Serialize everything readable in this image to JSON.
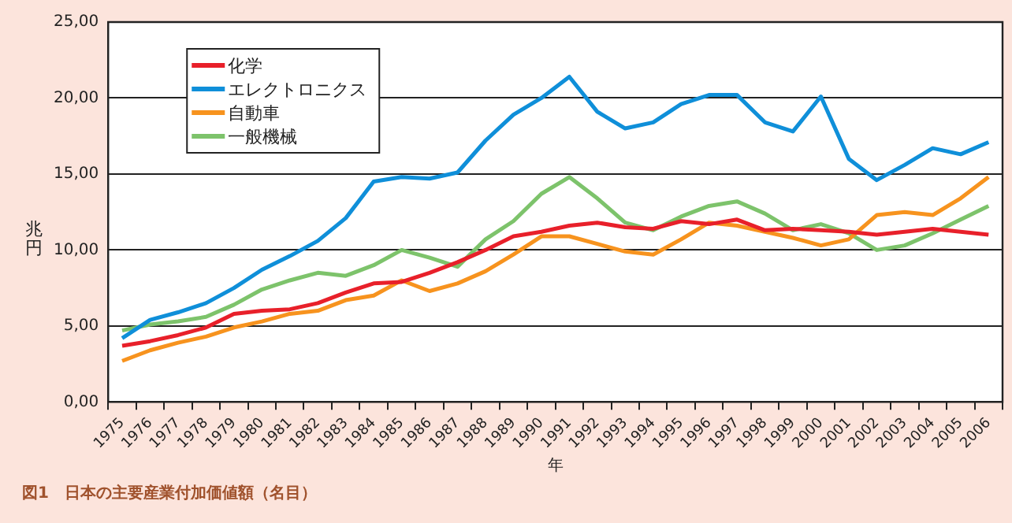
{
  "chart_data": {
    "type": "line",
    "categories": [
      "1975",
      "1976",
      "1977",
      "1978",
      "1979",
      "1980",
      "1981",
      "1982",
      "1983",
      "1984",
      "1985",
      "1986",
      "1987",
      "1988",
      "1989",
      "1990",
      "1991",
      "1992",
      "1993",
      "1994",
      "1995",
      "1996",
      "1997",
      "1998",
      "1999",
      "2000",
      "2001",
      "2002",
      "2003",
      "2004",
      "2005",
      "2006"
    ],
    "series": [
      {
        "name": "化学",
        "color": "#e8202a",
        "values": [
          3.7,
          4.0,
          4.4,
          4.9,
          5.8,
          6.0,
          6.1,
          6.5,
          7.2,
          7.8,
          7.9,
          8.5,
          9.2,
          10.0,
          10.9,
          11.2,
          11.6,
          11.8,
          11.5,
          11.4,
          11.9,
          11.7,
          12.0,
          11.3,
          11.4,
          11.3,
          11.2,
          11.0,
          11.2,
          11.4,
          11.2,
          11.0
        ]
      },
      {
        "name": "エレクトロニクス",
        "color": "#0f8fd9",
        "values": [
          4.2,
          5.4,
          5.9,
          6.5,
          7.5,
          8.7,
          9.6,
          10.6,
          12.1,
          14.5,
          14.8,
          14.7,
          15.1,
          17.2,
          18.9,
          20.0,
          21.4,
          19.1,
          18.0,
          18.4,
          19.6,
          20.2,
          20.2,
          18.4,
          17.8,
          20.1,
          16.0,
          14.6,
          15.6,
          16.7,
          16.3,
          17.1
        ]
      },
      {
        "name": "自動車",
        "color": "#f7931e",
        "values": [
          2.7,
          3.4,
          3.9,
          4.3,
          4.9,
          5.3,
          5.8,
          6.0,
          6.7,
          7.0,
          8.0,
          7.3,
          7.8,
          8.6,
          9.7,
          10.9,
          10.9,
          10.4,
          9.9,
          9.7,
          10.7,
          11.8,
          11.6,
          11.2,
          10.8,
          10.3,
          10.7,
          12.3,
          12.5,
          12.3,
          13.4,
          14.8
        ]
      },
      {
        "name": "一般機械",
        "color": "#7dc36b",
        "values": [
          4.7,
          5.1,
          5.3,
          5.6,
          6.4,
          7.4,
          8.0,
          8.5,
          8.3,
          9.0,
          10.0,
          9.5,
          8.9,
          10.7,
          11.9,
          13.7,
          14.8,
          13.4,
          11.8,
          11.3,
          12.2,
          12.9,
          13.2,
          12.4,
          11.3,
          11.7,
          11.1,
          10.0,
          10.3,
          11.1,
          12.0,
          12.9
        ]
      }
    ],
    "xlabel": "年",
    "ylabel": "兆円",
    "ylim": [
      0,
      25
    ],
    "yticks": [
      {
        "value": 0,
        "label": "0,00"
      },
      {
        "value": 5,
        "label": "5,00"
      },
      {
        "value": 10,
        "label": "10,00"
      },
      {
        "value": 15,
        "label": "15,00"
      },
      {
        "value": 20,
        "label": "20,00"
      },
      {
        "value": 25,
        "label": "25,00"
      }
    ],
    "grid": "y",
    "legend": "top left",
    "marker": "none",
    "line_style": "solid",
    "annotations": [
      "図1　日本の主要産業付加価値額（名目）"
    ]
  }
}
